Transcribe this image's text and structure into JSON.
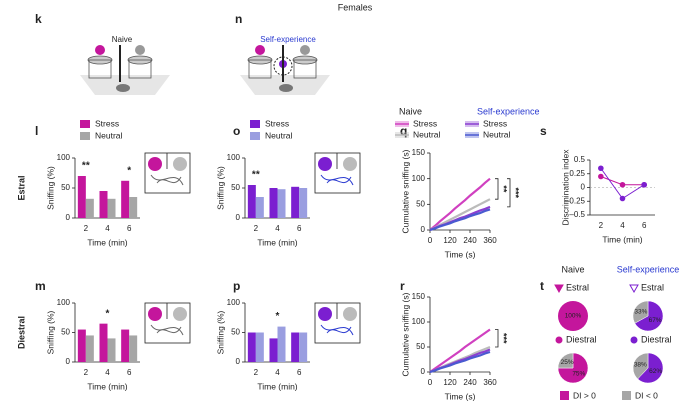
{
  "header": "Females",
  "diagrams": [
    {
      "panel": "k",
      "label": "Naive"
    },
    {
      "panel": "n",
      "label": "Self-experience"
    }
  ],
  "chart_data": [
    {
      "type": "bar",
      "panel": "l",
      "row_label": "Estral",
      "ylabel": "Sniffing (%)",
      "xlabel": "Time (min)",
      "legend": true,
      "categories": [
        "2",
        "4",
        "6"
      ],
      "ylim": [
        0,
        100
      ],
      "yticks": [
        0,
        50,
        100
      ],
      "series": [
        {
          "name": "Stress",
          "color": "#c4169c",
          "values": [
            70,
            45,
            62
          ]
        },
        {
          "name": "Neutral",
          "color": "#a6a6a6",
          "values": [
            32,
            32,
            35
          ]
        }
      ],
      "significance": [
        "**",
        null,
        "*"
      ]
    },
    {
      "type": "bar",
      "panel": "o",
      "ylabel": "Sniffing (%)",
      "xlabel": "Time (min)",
      "legend": true,
      "categories": [
        "2",
        "4",
        "6"
      ],
      "ylim": [
        0,
        100
      ],
      "yticks": [
        0,
        50,
        100
      ],
      "series": [
        {
          "name": "Stress",
          "color": "#7b1fd0",
          "values": [
            55,
            50,
            52
          ]
        },
        {
          "name": "Neutral",
          "color": "#9a9ee0",
          "values": [
            35,
            48,
            50
          ]
        }
      ],
      "significance": [
        "**",
        null,
        null
      ]
    },
    {
      "type": "line",
      "panel": "q",
      "ylabel": "Cumulative sniffing (s)",
      "xlabel": "Time (s)",
      "legend_titles": [
        "Naive",
        "Self-experience"
      ],
      "x": [
        0,
        30,
        60,
        90,
        120,
        150,
        180,
        210,
        240,
        270,
        300,
        330,
        360
      ],
      "xlim": [
        0,
        360
      ],
      "xticks": [
        0,
        120,
        240,
        360
      ],
      "ylim": [
        0,
        150
      ],
      "yticks": [
        0,
        50,
        100,
        150
      ],
      "series": [
        {
          "name": "Stress",
          "color": "#d040c0",
          "values": [
            0,
            8,
            17,
            25,
            33,
            42,
            50,
            58,
            67,
            75,
            83,
            92,
            100
          ]
        },
        {
          "name": "Neutral",
          "color": "#bbbbbb",
          "values": [
            0,
            5,
            10,
            15,
            20,
            25,
            30,
            35,
            40,
            45,
            50,
            55,
            60
          ]
        },
        {
          "name": "Stress",
          "color": "#8a3fd0",
          "values": [
            0,
            4,
            8,
            11,
            15,
            19,
            23,
            26,
            30,
            34,
            38,
            41,
            45
          ]
        },
        {
          "name": "Neutral",
          "color": "#4a5ad0",
          "values": [
            0,
            3,
            7,
            10,
            13,
            17,
            20,
            23,
            27,
            30,
            33,
            37,
            40
          ]
        }
      ],
      "significance": [
        "**",
        "***"
      ]
    },
    {
      "type": "pointline",
      "panel": "s",
      "ylabel": "Discrimination index",
      "xlabel": "Time (min)",
      "categories": [
        "2",
        "4",
        "6"
      ],
      "ylim": [
        -0.5,
        0.5
      ],
      "yticks": [
        {
          "value": -0.5,
          "label": "–0.5"
        },
        {
          "value": -0.25,
          "label": "–0.25"
        },
        0,
        0.25,
        0.5
      ],
      "series": [
        {
          "name": "Naive",
          "color": "#c4169c",
          "values": [
            0.2,
            0.05,
            0.05
          ]
        },
        {
          "name": "Self-experience",
          "color": "#7b1fd0",
          "values": [
            0.35,
            -0.2,
            0.05
          ]
        }
      ]
    },
    {
      "type": "bar",
      "panel": "m",
      "row_label": "Diestral",
      "ylabel": "Sniffing (%)",
      "xlabel": "Time (min)",
      "categories": [
        "2",
        "4",
        "6"
      ],
      "ylim": [
        0,
        100
      ],
      "yticks": [
        0,
        50,
        100
      ],
      "series": [
        {
          "name": "Stress",
          "color": "#c4169c",
          "values": [
            55,
            65,
            55
          ]
        },
        {
          "name": "Neutral",
          "color": "#a6a6a6",
          "values": [
            45,
            40,
            45
          ]
        }
      ],
      "significance": [
        null,
        "*",
        null
      ]
    },
    {
      "type": "bar",
      "panel": "p",
      "ylabel": "Sniffing (%)",
      "xlabel": "Time (min)",
      "categories": [
        "2",
        "4",
        "6"
      ],
      "ylim": [
        0,
        100
      ],
      "yticks": [
        0,
        50,
        100
      ],
      "series": [
        {
          "name": "Stress",
          "color": "#7b1fd0",
          "values": [
            50,
            40,
            50
          ]
        },
        {
          "name": "Neutral",
          "color": "#9a9ee0",
          "values": [
            50,
            60,
            50
          ]
        }
      ],
      "significance": [
        null,
        "*",
        null
      ]
    },
    {
      "type": "line",
      "panel": "r",
      "ylabel": "Cumulative sniffing (s)",
      "xlabel": "Time (s)",
      "x": [
        0,
        30,
        60,
        90,
        120,
        150,
        180,
        210,
        240,
        270,
        300,
        330,
        360
      ],
      "xlim": [
        0,
        360
      ],
      "xticks": [
        0,
        120,
        240,
        360
      ],
      "ylim": [
        0,
        150
      ],
      "yticks": [
        0,
        50,
        100,
        150
      ],
      "series": [
        {
          "name": "Stress",
          "color": "#d040c0",
          "values": [
            0,
            7,
            14,
            21,
            28,
            35,
            42,
            50,
            57,
            64,
            71,
            78,
            85
          ]
        },
        {
          "name": "Neutral",
          "color": "#bbbbbb",
          "values": [
            0,
            4,
            8,
            13,
            17,
            21,
            25,
            29,
            33,
            38,
            42,
            46,
            50
          ]
        },
        {
          "name": "Stress",
          "color": "#8a3fd0",
          "values": [
            0,
            4,
            8,
            11,
            15,
            19,
            23,
            26,
            30,
            34,
            38,
            41,
            45
          ]
        },
        {
          "name": "Neutral",
          "color": "#4a5ad0",
          "values": [
            0,
            3,
            7,
            10,
            13,
            17,
            20,
            23,
            27,
            30,
            33,
            37,
            40
          ]
        }
      ],
      "significance": [
        "***"
      ]
    },
    {
      "type": "pie",
      "panel": "t",
      "group_titles": [
        "Naive",
        "Self-experience"
      ],
      "row_titles": [
        "Estral",
        "Diestral"
      ],
      "legend": [
        {
          "name": "DI > 0",
          "color": "#c4169c"
        },
        {
          "name": "DI < 0",
          "color": "#a6a6a6"
        }
      ],
      "pies": [
        {
          "values": [
            100,
            0
          ],
          "value_labels": [
            "100%",
            null
          ],
          "colors": [
            "#c4169c",
            "#a6a6a6"
          ]
        },
        {
          "values": [
            67,
            33
          ],
          "value_labels": [
            "67%",
            "33%"
          ],
          "colors": [
            "#7b1fd0",
            "#a6a6a6"
          ]
        },
        {
          "values": [
            75,
            25
          ],
          "value_labels": [
            "75%",
            "25%"
          ],
          "colors": [
            "#c4169c",
            "#a6a6a6"
          ]
        },
        {
          "values": [
            62,
            38
          ],
          "value_labels": [
            "62%",
            "38%"
          ],
          "colors": [
            "#7b1fd0",
            "#a6a6a6"
          ]
        }
      ]
    }
  ]
}
